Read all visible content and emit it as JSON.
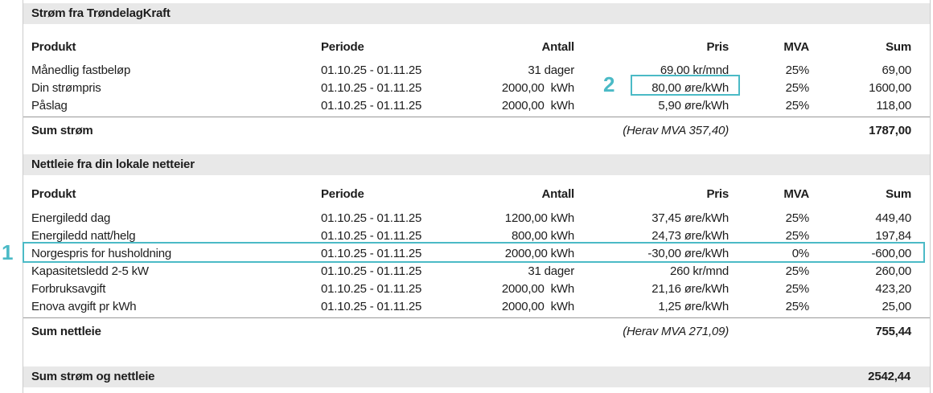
{
  "theme": {
    "annotation_color": "#4bbac6",
    "section_bar_background": "#e8e8e8",
    "text_color": "#1d1d1d"
  },
  "sections": [
    {
      "title": "Strøm fra TrøndelagKraft",
      "columns": [
        "Produkt",
        "Periode",
        "Antall",
        "Pris",
        "MVA",
        "Sum"
      ],
      "rows": [
        {
          "produkt": "Månedlig fastbeløp",
          "periode": "01.10.25 - 01.11.25",
          "antall": "31 dager",
          "pris": "69,00 kr/mnd",
          "mva": "25%",
          "sum": "69,00"
        },
        {
          "produkt": "Din strømpris",
          "periode": "01.10.25 - 01.11.25",
          "antall": "2000,00  kWh",
          "pris": "80,00 øre/kWh",
          "mva": "25%",
          "sum": "1600,00"
        },
        {
          "produkt": "Påslag",
          "periode": "01.10.25 - 01.11.25",
          "antall": "2000,00  kWh",
          "pris": "5,90 øre/kWh",
          "mva": "25%",
          "sum": "118,00"
        }
      ],
      "sum_label": "Sum strøm",
      "mva_note": "(Herav MVA 357,40)",
      "sum_value": "1787,00"
    },
    {
      "title": "Nettleie fra din lokale netteier",
      "columns": [
        "Produkt",
        "Periode",
        "Antall",
        "Pris",
        "MVA",
        "Sum"
      ],
      "rows": [
        {
          "produkt": "Energiledd dag",
          "periode": "01.10.25 - 01.11.25",
          "antall": "1200,00 kWh",
          "pris": "37,45 øre/kWh",
          "mva": "25%",
          "sum": "449,40"
        },
        {
          "produkt": "Energiledd natt/helg",
          "periode": "01.10.25 - 01.11.25",
          "antall": "800,00 kWh",
          "pris": "24,73 øre/kWh",
          "mva": "25%",
          "sum": "197,84"
        },
        {
          "produkt": "Norgespris for husholdning",
          "periode": "01.10.25 - 01.11.25",
          "antall": "2000,00 kWh",
          "pris": "-30,00 øre/kWh",
          "mva": "0%",
          "sum": "-600,00"
        },
        {
          "produkt": "Kapasitetsledd 2-5 kW",
          "periode": "01.10.25 - 01.11.25",
          "antall": "31 dager",
          "pris": "260 kr/mnd",
          "mva": "25%",
          "sum": "260,00"
        },
        {
          "produkt": "Forbruksavgift",
          "periode": "01.10.25 - 01.11.25",
          "antall": "2000,00  kWh",
          "pris": "21,16 øre/kWh",
          "mva": "25%",
          "sum": "423,20"
        },
        {
          "produkt": "Enova avgift pr kWh",
          "periode": "01.10.25 - 01.11.25",
          "antall": "2000,00  kWh",
          "pris": "1,25 øre/kWh",
          "mva": "25%",
          "sum": "25,00"
        }
      ],
      "sum_label": "Sum nettleie",
      "mva_note": "(Herav MVA 271,09)",
      "sum_value": "755,44"
    }
  ],
  "total": {
    "label": "Sum strøm og nettleie",
    "value": "2542,44"
  },
  "annotations": [
    {
      "number": "1"
    },
    {
      "number": "2"
    }
  ]
}
